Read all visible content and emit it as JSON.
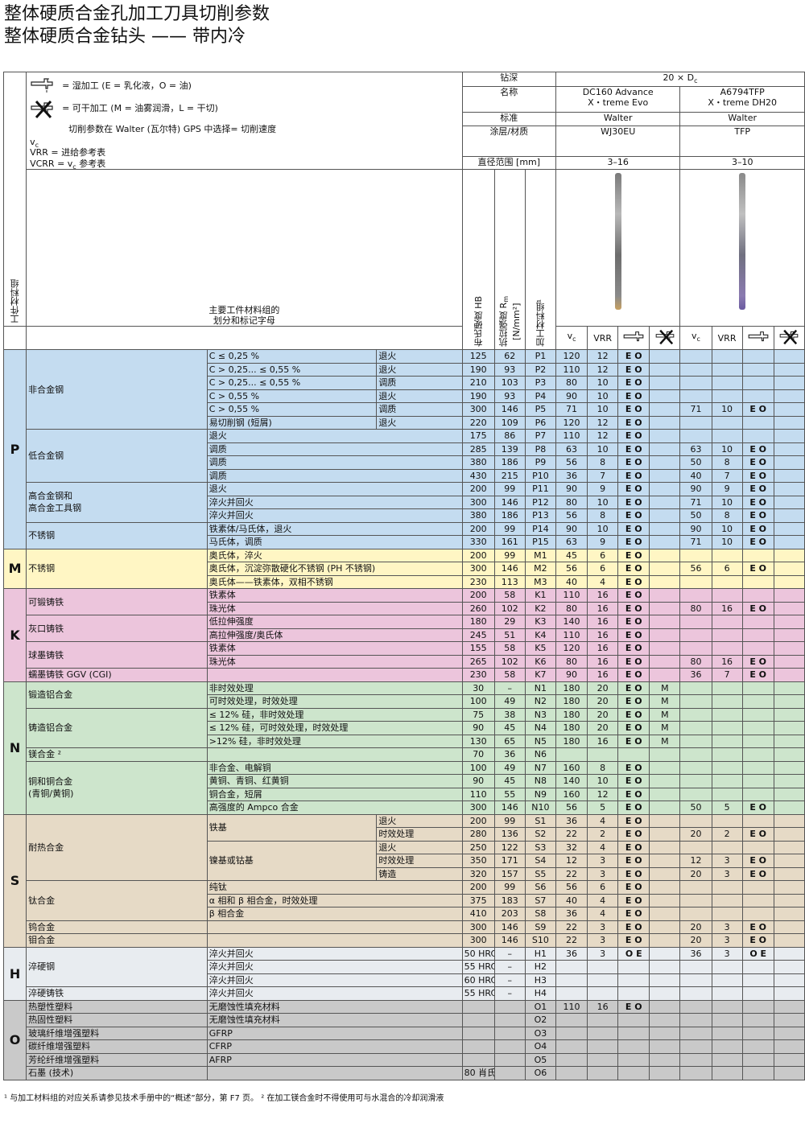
{
  "title": {
    "line1": "整体硬质合金孔加工刀具切削参数",
    "line2": "整体硬质合金钻头 —— 带内冷"
  },
  "legend": {
    "wet": "= 湿加工 (E = 乳化液，O = 油)",
    "dry": "= 可干加工 (M = 油雾润滑，L = 干切)",
    "gps": "切削参数在 Walter (瓦尔特) GPS 中选择",
    "vc": "= 切削速度",
    "vc_sym": "v",
    "vc_sub": "c",
    "vrr": "VRR    = 进给参考表",
    "vcrr_a": "VCRR  = v",
    "vcrr_b": " 参考表"
  },
  "header": {
    "depth_label": "钻深",
    "depth_value": "20 × D",
    "depth_sub": "c",
    "name_label": "名称",
    "tool1_name1": "DC160 Advance",
    "tool1_name2": "X・treme Evo",
    "tool2_name1": "A6794TFP",
    "tool2_name2": "X・treme DH20",
    "std_label": "标准",
    "tool1_std": "Walter",
    "tool2_std": "Walter",
    "coat_label": "涂层/材质",
    "tool1_coat": "WJ30EU",
    "tool2_coat": "TFP",
    "dia_label": "直径范围 [mm]",
    "tool1_dia": "3–16",
    "tool2_dia": "3–10",
    "wm_group": "工件材料组",
    "main_group1": "主要工件材料组的",
    "main_group2": "划分和标记字母",
    "hb": "布氏硬度 HB",
    "rm1": "抗拉强度 R",
    "rm_sub": "m",
    "rm2": "[N/mm²]",
    "mg": "加工材料组¹",
    "vc": "v",
    "vc_sub": "c",
    "vrr": "VRR"
  },
  "rows": [
    {
      "g": "P",
      "cls": "p",
      "c1": "非合金钢",
      "c2": "C ≤ 0,25 %",
      "c3": "退火",
      "hb": "125",
      "rm": "62",
      "mg": "P1",
      "v1": "120",
      "f1": "12",
      "w1": "E O",
      "d1": "",
      "v2": "",
      "f2": "",
      "w2": "",
      "d2": ""
    },
    {
      "g": "P",
      "cls": "p",
      "c1": "",
      "c2": "C > 0,25... ≤ 0,55 %",
      "c3": "退火",
      "hb": "190",
      "rm": "93",
      "mg": "P2",
      "v1": "110",
      "f1": "12",
      "w1": "E O",
      "d1": "",
      "v2": "",
      "f2": "",
      "w2": "",
      "d2": ""
    },
    {
      "g": "P",
      "cls": "p",
      "c1": "",
      "c2": "C > 0,25... ≤ 0,55 %",
      "c3": "调质",
      "hb": "210",
      "rm": "103",
      "mg": "P3",
      "v1": "80",
      "f1": "10",
      "w1": "E O",
      "d1": "",
      "v2": "",
      "f2": "",
      "w2": "",
      "d2": ""
    },
    {
      "g": "P",
      "cls": "p",
      "c1": "",
      "c2": "C > 0,55 %",
      "c3": "退火",
      "hb": "190",
      "rm": "93",
      "mg": "P4",
      "v1": "90",
      "f1": "10",
      "w1": "E O",
      "d1": "",
      "v2": "",
      "f2": "",
      "w2": "",
      "d2": ""
    },
    {
      "g": "P",
      "cls": "p",
      "c1": "",
      "c2": "C > 0,55 %",
      "c3": "调质",
      "hb": "300",
      "rm": "146",
      "mg": "P5",
      "v1": "71",
      "f1": "10",
      "w1": "E O",
      "d1": "",
      "v2": "71",
      "f2": "10",
      "w2": "E O",
      "d2": ""
    },
    {
      "g": "P",
      "cls": "p",
      "c1": "",
      "c2": "易切削钢 (短屑)",
      "c3": "退火",
      "hb": "220",
      "rm": "109",
      "mg": "P6",
      "v1": "120",
      "f1": "12",
      "w1": "E O",
      "d1": "",
      "v2": "",
      "f2": "",
      "w2": "",
      "d2": ""
    },
    {
      "g": "P",
      "cls": "p",
      "c1": "低合金钢",
      "c2": "退火",
      "c3": "",
      "hb": "175",
      "rm": "86",
      "mg": "P7",
      "v1": "110",
      "f1": "12",
      "w1": "E O",
      "d1": "",
      "v2": "",
      "f2": "",
      "w2": "",
      "d2": ""
    },
    {
      "g": "P",
      "cls": "p",
      "c1": "",
      "c2": "调质",
      "c3": "",
      "hb": "285",
      "rm": "139",
      "mg": "P8",
      "v1": "63",
      "f1": "10",
      "w1": "E O",
      "d1": "",
      "v2": "63",
      "f2": "10",
      "w2": "E O",
      "d2": ""
    },
    {
      "g": "P",
      "cls": "p",
      "c1": "",
      "c2": "调质",
      "c3": "",
      "hb": "380",
      "rm": "186",
      "mg": "P9",
      "v1": "56",
      "f1": "8",
      "w1": "E O",
      "d1": "",
      "v2": "50",
      "f2": "8",
      "w2": "E O",
      "d2": ""
    },
    {
      "g": "P",
      "cls": "p",
      "c1": "",
      "c2": "调质",
      "c3": "",
      "hb": "430",
      "rm": "215",
      "mg": "P10",
      "v1": "36",
      "f1": "7",
      "w1": "E O",
      "d1": "",
      "v2": "40",
      "f2": "7",
      "w2": "E O",
      "d2": ""
    },
    {
      "g": "P",
      "cls": "p",
      "c1": "高合金钢和\n高合金工具钢",
      "c2": "退火",
      "c3": "",
      "hb": "200",
      "rm": "99",
      "mg": "P11",
      "v1": "90",
      "f1": "9",
      "w1": "E O",
      "d1": "",
      "v2": "90",
      "f2": "9",
      "w2": "E O",
      "d2": ""
    },
    {
      "g": "P",
      "cls": "p",
      "c1": "",
      "c2": "淬火并回火",
      "c3": "",
      "hb": "300",
      "rm": "146",
      "mg": "P12",
      "v1": "80",
      "f1": "10",
      "w1": "E O",
      "d1": "",
      "v2": "71",
      "f2": "10",
      "w2": "E O",
      "d2": ""
    },
    {
      "g": "P",
      "cls": "p",
      "c1": "",
      "c2": "淬火并回火",
      "c3": "",
      "hb": "380",
      "rm": "186",
      "mg": "P13",
      "v1": "56",
      "f1": "8",
      "w1": "E O",
      "d1": "",
      "v2": "50",
      "f2": "8",
      "w2": "E O",
      "d2": ""
    },
    {
      "g": "P",
      "cls": "p",
      "c1": "不锈钢",
      "c2": "铁素体/马氏体，退火",
      "c3": "",
      "hb": "200",
      "rm": "99",
      "mg": "P14",
      "v1": "90",
      "f1": "10",
      "w1": "E O",
      "d1": "",
      "v2": "90",
      "f2": "10",
      "w2": "E O",
      "d2": ""
    },
    {
      "g": "P",
      "cls": "p",
      "c1": "",
      "c2": "马氏体，调质",
      "c3": "",
      "hb": "330",
      "rm": "161",
      "mg": "P15",
      "v1": "63",
      "f1": "9",
      "w1": "E O",
      "d1": "",
      "v2": "71",
      "f2": "10",
      "w2": "E O",
      "d2": ""
    },
    {
      "g": "M",
      "cls": "m",
      "c1": "不锈钢",
      "c2": "奥氏体，淬火",
      "c3": "",
      "hb": "200",
      "rm": "99",
      "mg": "M1",
      "v1": "45",
      "f1": "6",
      "w1": "E O",
      "d1": "",
      "v2": "",
      "f2": "",
      "w2": "",
      "d2": ""
    },
    {
      "g": "M",
      "cls": "m",
      "c1": "",
      "c2": "奥氏体，沉淀弥散硬化不锈钢 (PH 不锈钢)",
      "c3": "",
      "hb": "300",
      "rm": "146",
      "mg": "M2",
      "v1": "56",
      "f1": "6",
      "w1": "E O",
      "d1": "",
      "v2": "56",
      "f2": "6",
      "w2": "E O",
      "d2": ""
    },
    {
      "g": "M",
      "cls": "m",
      "c1": "",
      "c2": "奥氏体——铁素体，双相不锈钢",
      "c3": "",
      "hb": "230",
      "rm": "113",
      "mg": "M3",
      "v1": "40",
      "f1": "4",
      "w1": "E O",
      "d1": "",
      "v2": "",
      "f2": "",
      "w2": "",
      "d2": ""
    },
    {
      "g": "K",
      "cls": "k",
      "c1": "可锻铸铁",
      "c2": "铁素体",
      "c3": "",
      "hb": "200",
      "rm": "58",
      "mg": "K1",
      "v1": "110",
      "f1": "16",
      "w1": "E O",
      "d1": "",
      "v2": "",
      "f2": "",
      "w2": "",
      "d2": ""
    },
    {
      "g": "K",
      "cls": "k",
      "c1": "",
      "c2": "珠光体",
      "c3": "",
      "hb": "260",
      "rm": "102",
      "mg": "K2",
      "v1": "80",
      "f1": "16",
      "w1": "E O",
      "d1": "",
      "v2": "80",
      "f2": "16",
      "w2": "E O",
      "d2": ""
    },
    {
      "g": "K",
      "cls": "k",
      "c1": "灰口铸铁",
      "c2": "低拉伸强度",
      "c3": "",
      "hb": "180",
      "rm": "29",
      "mg": "K3",
      "v1": "140",
      "f1": "16",
      "w1": "E O",
      "d1": "",
      "v2": "",
      "f2": "",
      "w2": "",
      "d2": ""
    },
    {
      "g": "K",
      "cls": "k",
      "c1": "",
      "c2": "高拉伸强度/奥氏体",
      "c3": "",
      "hb": "245",
      "rm": "51",
      "mg": "K4",
      "v1": "110",
      "f1": "16",
      "w1": "E O",
      "d1": "",
      "v2": "",
      "f2": "",
      "w2": "",
      "d2": ""
    },
    {
      "g": "K",
      "cls": "k",
      "c1": "球墨铸铁",
      "c2": "铁素体",
      "c3": "",
      "hb": "155",
      "rm": "58",
      "mg": "K5",
      "v1": "120",
      "f1": "16",
      "w1": "E O",
      "d1": "",
      "v2": "",
      "f2": "",
      "w2": "",
      "d2": ""
    },
    {
      "g": "K",
      "cls": "k",
      "c1": "",
      "c2": "珠光体",
      "c3": "",
      "hb": "265",
      "rm": "102",
      "mg": "K6",
      "v1": "80",
      "f1": "16",
      "w1": "E O",
      "d1": "",
      "v2": "80",
      "f2": "16",
      "w2": "E O",
      "d2": ""
    },
    {
      "g": "K",
      "cls": "k",
      "c1": "蠕墨铸铁 GGV (CGI)",
      "c2": "",
      "c3": "",
      "hb": "230",
      "rm": "58",
      "mg": "K7",
      "v1": "90",
      "f1": "16",
      "w1": "E O",
      "d1": "",
      "v2": "36",
      "f2": "7",
      "w2": "E O",
      "d2": ""
    },
    {
      "g": "N",
      "cls": "n",
      "c1": "锻造铝合金",
      "c2": "非时效处理",
      "c3": "",
      "hb": "30",
      "rm": "–",
      "mg": "N1",
      "v1": "180",
      "f1": "20",
      "w1": "E O",
      "d1": "M",
      "v2": "",
      "f2": "",
      "w2": "",
      "d2": ""
    },
    {
      "g": "N",
      "cls": "n",
      "c1": "",
      "c2": "可时效处理，时效处理",
      "c3": "",
      "hb": "100",
      "rm": "49",
      "mg": "N2",
      "v1": "180",
      "f1": "20",
      "w1": "E O",
      "d1": "M",
      "v2": "",
      "f2": "",
      "w2": "",
      "d2": ""
    },
    {
      "g": "N",
      "cls": "n",
      "c1": "铸造铝合金",
      "c2": "≤ 12% 硅，非时效处理",
      "c3": "",
      "hb": "75",
      "rm": "38",
      "mg": "N3",
      "v1": "180",
      "f1": "20",
      "w1": "E O",
      "d1": "M",
      "v2": "",
      "f2": "",
      "w2": "",
      "d2": ""
    },
    {
      "g": "N",
      "cls": "n",
      "c1": "",
      "c2": "≤ 12% 硅，可时效处理，时效处理",
      "c3": "",
      "hb": "90",
      "rm": "45",
      "mg": "N4",
      "v1": "180",
      "f1": "20",
      "w1": "E O",
      "d1": "M",
      "v2": "",
      "f2": "",
      "w2": "",
      "d2": ""
    },
    {
      "g": "N",
      "cls": "n",
      "c1": "",
      "c2": ">12% 硅，非时效处理",
      "c3": "",
      "hb": "130",
      "rm": "65",
      "mg": "N5",
      "v1": "180",
      "f1": "16",
      "w1": "E O",
      "d1": "M",
      "v2": "",
      "f2": "",
      "w2": "",
      "d2": ""
    },
    {
      "g": "N",
      "cls": "n",
      "c1": "镁合金 ²",
      "c2": "",
      "c3": "",
      "hb": "70",
      "rm": "36",
      "mg": "N6",
      "v1": "",
      "f1": "",
      "w1": "",
      "d1": "",
      "v2": "",
      "f2": "",
      "w2": "",
      "d2": ""
    },
    {
      "g": "N",
      "cls": "n",
      "c1": "铜和铜合金\n(青铜/黄铜)",
      "c2": "非合金、电解铜",
      "c3": "",
      "hb": "100",
      "rm": "49",
      "mg": "N7",
      "v1": "160",
      "f1": "8",
      "w1": "E O",
      "d1": "",
      "v2": "",
      "f2": "",
      "w2": "",
      "d2": ""
    },
    {
      "g": "N",
      "cls": "n",
      "c1": "",
      "c2": "黄铜、青铜、红黄铜",
      "c3": "",
      "hb": "90",
      "rm": "45",
      "mg": "N8",
      "v1": "140",
      "f1": "10",
      "w1": "E O",
      "d1": "",
      "v2": "",
      "f2": "",
      "w2": "",
      "d2": ""
    },
    {
      "g": "N",
      "cls": "n",
      "c1": "",
      "c2": "铜合金，短屑",
      "c3": "",
      "hb": "110",
      "rm": "55",
      "mg": "N9",
      "v1": "160",
      "f1": "12",
      "w1": "E O",
      "d1": "",
      "v2": "",
      "f2": "",
      "w2": "",
      "d2": ""
    },
    {
      "g": "N",
      "cls": "n",
      "c1": "",
      "c2": "高强度的 Ampco 合金",
      "c3": "",
      "hb": "300",
      "rm": "146",
      "mg": "N10",
      "v1": "56",
      "f1": "5",
      "w1": "E O",
      "d1": "",
      "v2": "50",
      "f2": "5",
      "w2": "E O",
      "d2": ""
    },
    {
      "g": "S",
      "cls": "s",
      "c1": "耐热合金",
      "c2": "铁基",
      "c3": "退火",
      "hb": "200",
      "rm": "99",
      "mg": "S1",
      "v1": "36",
      "f1": "4",
      "w1": "E O",
      "d1": "",
      "v2": "",
      "f2": "",
      "w2": "",
      "d2": ""
    },
    {
      "g": "S",
      "cls": "s",
      "c1": "",
      "c2": "",
      "c3": "时效处理",
      "hb": "280",
      "rm": "136",
      "mg": "S2",
      "v1": "22",
      "f1": "2",
      "w1": "E O",
      "d1": "",
      "v2": "20",
      "f2": "2",
      "w2": "E O",
      "d2": ""
    },
    {
      "g": "S",
      "cls": "s",
      "c1": "",
      "c2": "镍基或钴基",
      "c3": "退火",
      "hb": "250",
      "rm": "122",
      "mg": "S3",
      "v1": "32",
      "f1": "4",
      "w1": "E O",
      "d1": "",
      "v2": "",
      "f2": "",
      "w2": "",
      "d2": ""
    },
    {
      "g": "S",
      "cls": "s",
      "c1": "",
      "c2": "",
      "c3": "时效处理",
      "hb": "350",
      "rm": "171",
      "mg": "S4",
      "v1": "12",
      "f1": "3",
      "w1": "E O",
      "d1": "",
      "v2": "12",
      "f2": "3",
      "w2": "E O",
      "d2": ""
    },
    {
      "g": "S",
      "cls": "s",
      "c1": "",
      "c2": "",
      "c3": "铸造",
      "hb": "320",
      "rm": "157",
      "mg": "S5",
      "v1": "22",
      "f1": "3",
      "w1": "E O",
      "d1": "",
      "v2": "20",
      "f2": "3",
      "w2": "E O",
      "d2": ""
    },
    {
      "g": "S",
      "cls": "s",
      "c1": "钛合金",
      "c2": "纯钛",
      "c3": "",
      "hb": "200",
      "rm": "99",
      "mg": "S6",
      "v1": "56",
      "f1": "6",
      "w1": "E O",
      "d1": "",
      "v2": "",
      "f2": "",
      "w2": "",
      "d2": ""
    },
    {
      "g": "S",
      "cls": "s",
      "c1": "",
      "c2": "α 相和 β 相合金，时效处理",
      "c3": "",
      "hb": "375",
      "rm": "183",
      "mg": "S7",
      "v1": "40",
      "f1": "4",
      "w1": "E O",
      "d1": "",
      "v2": "",
      "f2": "",
      "w2": "",
      "d2": ""
    },
    {
      "g": "S",
      "cls": "s",
      "c1": "",
      "c2": "β 相合金",
      "c3": "",
      "hb": "410",
      "rm": "203",
      "mg": "S8",
      "v1": "36",
      "f1": "4",
      "w1": "E O",
      "d1": "",
      "v2": "",
      "f2": "",
      "w2": "",
      "d2": ""
    },
    {
      "g": "S",
      "cls": "s",
      "c1": "钨合金",
      "c2": "",
      "c3": "",
      "hb": "300",
      "rm": "146",
      "mg": "S9",
      "v1": "22",
      "f1": "3",
      "w1": "E O",
      "d1": "",
      "v2": "20",
      "f2": "3",
      "w2": "E O",
      "d2": ""
    },
    {
      "g": "S",
      "cls": "s",
      "c1": "钼合金",
      "c2": "",
      "c3": "",
      "hb": "300",
      "rm": "146",
      "mg": "S10",
      "v1": "22",
      "f1": "3",
      "w1": "E O",
      "d1": "",
      "v2": "20",
      "f2": "3",
      "w2": "E O",
      "d2": ""
    },
    {
      "g": "H",
      "cls": "h",
      "c1": "淬硬钢",
      "c2": "淬火并回火",
      "c3": "",
      "hb": "50 HRC",
      "rm": "–",
      "mg": "H1",
      "v1": "36",
      "f1": "3",
      "w1": "O E",
      "d1": "",
      "v2": "36",
      "f2": "3",
      "w2": "O E",
      "d2": ""
    },
    {
      "g": "H",
      "cls": "h",
      "c1": "",
      "c2": "淬火并回火",
      "c3": "",
      "hb": "55 HRC",
      "rm": "–",
      "mg": "H2",
      "v1": "",
      "f1": "",
      "w1": "",
      "d1": "",
      "v2": "",
      "f2": "",
      "w2": "",
      "d2": ""
    },
    {
      "g": "H",
      "cls": "h",
      "c1": "",
      "c2": "淬火并回火",
      "c3": "",
      "hb": "60 HRC",
      "rm": "–",
      "mg": "H3",
      "v1": "",
      "f1": "",
      "w1": "",
      "d1": "",
      "v2": "",
      "f2": "",
      "w2": "",
      "d2": ""
    },
    {
      "g": "H",
      "cls": "h",
      "c1": "淬硬铸铁",
      "c2": "淬火并回火",
      "c3": "",
      "hb": "55 HRC",
      "rm": "–",
      "mg": "H4",
      "v1": "",
      "f1": "",
      "w1": "",
      "d1": "",
      "v2": "",
      "f2": "",
      "w2": "",
      "d2": ""
    },
    {
      "g": "O",
      "cls": "o",
      "c1": "热塑性塑料",
      "c2": "无磨蚀性填充材料",
      "c3": "",
      "hb": "",
      "rm": "",
      "mg": "O1",
      "v1": "110",
      "f1": "16",
      "w1": "E O",
      "d1": "",
      "v2": "",
      "f2": "",
      "w2": "",
      "d2": ""
    },
    {
      "g": "O",
      "cls": "o",
      "c1": "热固性塑料",
      "c2": "无磨蚀性填充材料",
      "c3": "",
      "hb": "",
      "rm": "",
      "mg": "O2",
      "v1": "",
      "f1": "",
      "w1": "",
      "d1": "",
      "v2": "",
      "f2": "",
      "w2": "",
      "d2": ""
    },
    {
      "g": "O",
      "cls": "o",
      "c1": "玻璃纤维增强塑料",
      "c2": "GFRP",
      "c3": "",
      "hb": "",
      "rm": "",
      "mg": "O3",
      "v1": "",
      "f1": "",
      "w1": "",
      "d1": "",
      "v2": "",
      "f2": "",
      "w2": "",
      "d2": ""
    },
    {
      "g": "O",
      "cls": "o",
      "c1": "碳纤维增强塑料",
      "c2": "CFRP",
      "c3": "",
      "hb": "",
      "rm": "",
      "mg": "O4",
      "v1": "",
      "f1": "",
      "w1": "",
      "d1": "",
      "v2": "",
      "f2": "",
      "w2": "",
      "d2": ""
    },
    {
      "g": "O",
      "cls": "o",
      "c1": "芳纶纤维增强塑料",
      "c2": "AFRP",
      "c3": "",
      "hb": "",
      "rm": "",
      "mg": "O5",
      "v1": "",
      "f1": "",
      "w1": "",
      "d1": "",
      "v2": "",
      "f2": "",
      "w2": "",
      "d2": ""
    },
    {
      "g": "O",
      "cls": "o",
      "c1": "石墨 (技术)",
      "c2": "",
      "c3": "",
      "hb": "80 肖氏",
      "rm": "",
      "mg": "O6",
      "v1": "",
      "f1": "",
      "w1": "",
      "d1": "",
      "v2": "",
      "f2": "",
      "w2": "",
      "d2": ""
    }
  ],
  "footnote": "¹ 与加工材料组的对应关系请参见技术手册中的“概述”部分，第 F7 页。 ² 在加工镁合金时不得使用可与水混合的冷却润滑液",
  "colors": {
    "P": "#c4dcf0",
    "M": "#fff6c4",
    "K": "#ecc5dc",
    "N": "#cde5cc",
    "S": "#e6dac6",
    "H": "#e8ecf0",
    "O": "#c9c9c9"
  },
  "icons": {
    "wet": "coolant-tap-icon",
    "dry": "dry-crossed-tap-icon"
  }
}
